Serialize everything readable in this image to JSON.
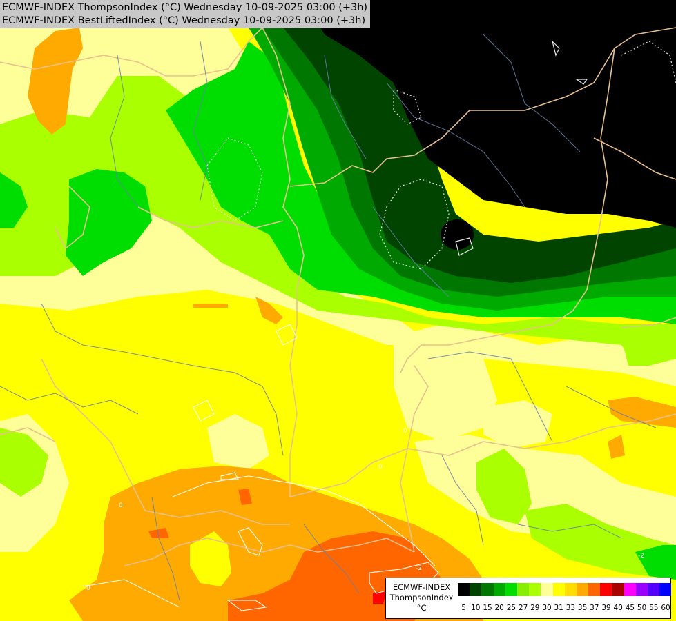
{
  "header": {
    "line1": "ECMWF-INDEX ThompsonIndex (°C) Wednesday 10-09-2025 03:00 (+3h)",
    "line2": "ECMWF-INDEX BestLiftedIndex (°C) Wednesday 10-09-2025 03:00 (+3h)"
  },
  "legend": {
    "title_line1": "ECMWF-INDEX",
    "title_line2": "ThompsonIndex",
    "title_line3": "°C",
    "colors": [
      "#000000",
      "#000000",
      "#000000",
      "#000000",
      "#004400",
      "#007700",
      "#00aa00",
      "#00dd00",
      "#88ee00",
      "#aaff00",
      "#ffff99",
      "#ffff00",
      "#ffdd00",
      "#ffaa00",
      "#ff6600",
      "#ff0000",
      "#aa0000",
      "#ff00ff",
      "#9900ff",
      "#5500ff",
      "#0000ff"
    ],
    "ticks": [
      "5",
      "10",
      "15",
      "20",
      "25",
      "27",
      "29",
      "30",
      "31",
      "33",
      "35",
      "37",
      "39",
      "40",
      "45",
      "50",
      "55",
      "60"
    ]
  },
  "map": {
    "contour_labels": [
      "0",
      "0",
      "-2",
      "0",
      "-2",
      "0"
    ]
  }
}
